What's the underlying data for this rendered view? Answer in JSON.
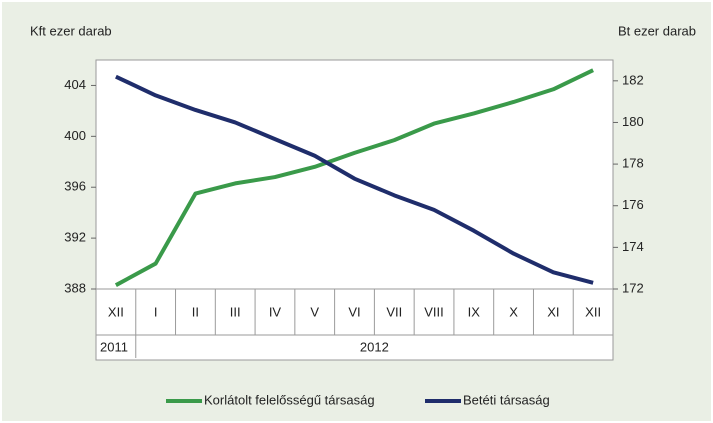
{
  "chart_data": {
    "type": "line",
    "y_label": "Kft ezer darab",
    "y2_label": "Bt ezer darab",
    "categories": [
      "XII",
      "I",
      "II",
      "III",
      "IV",
      "V",
      "VI",
      "VII",
      "VIII",
      "IX",
      "X",
      "XI",
      "XII"
    ],
    "years": [
      {
        "label": "2011",
        "count": 1
      },
      {
        "label": "2012",
        "count": 12
      }
    ],
    "ylim": [
      388,
      406
    ],
    "yticks": [
      388,
      392,
      396,
      400,
      404
    ],
    "y2lim": [
      172,
      183
    ],
    "y2ticks": [
      172,
      174,
      176,
      178,
      180,
      182
    ],
    "series": [
      {
        "name": "Korlátolt felelősségű társaság",
        "color": "#3a9a4a",
        "axis": "y",
        "values": [
          388.3,
          390.0,
          395.5,
          396.3,
          396.8,
          397.6,
          398.7,
          399.7,
          401.0,
          401.8,
          402.7,
          403.7,
          405.2
        ]
      },
      {
        "name": "Betéti társaság",
        "color": "#1f2d6b",
        "axis": "y2",
        "values": [
          182.2,
          181.3,
          180.6,
          180.0,
          179.2,
          178.4,
          177.3,
          176.5,
          175.8,
          174.8,
          173.7,
          172.8,
          172.3
        ]
      }
    ]
  }
}
